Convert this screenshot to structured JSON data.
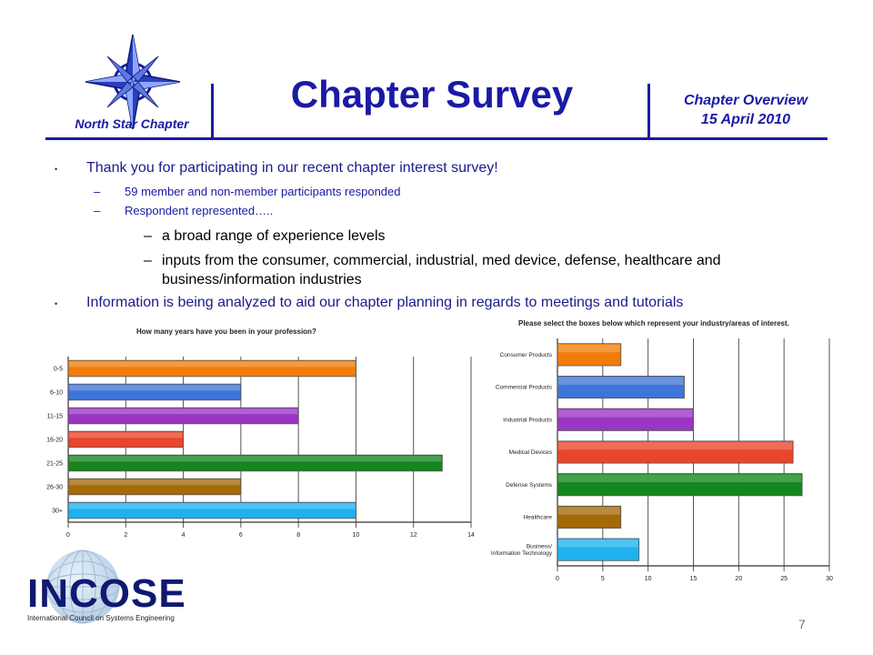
{
  "header": {
    "org": "North Star Chapter",
    "title": "Chapter Survey",
    "overview": "Chapter Overview",
    "date": "15 April 2010"
  },
  "bullets": {
    "b1": "Thank you for participating in our recent chapter interest survey!",
    "b1_sub1": "59 member and non-member participants responded",
    "b1_sub2": "Respondent represented…..",
    "b1_sub2_a": "a broad range of experience levels",
    "b1_sub2_b_line1": "inputs from the consumer, commercial, industrial, med device, defense, healthcare and",
    "b1_sub2_b_line2": "business/information industries",
    "b2": "Information is being analyzed to aid our chapter planning in regards to meetings and tutorials",
    "dash": "–",
    "dot": "•"
  },
  "footer": {
    "logo_text": "INCOSE",
    "logo_sub": "International Council on Systems Engineering",
    "page": "7"
  },
  "colors": [
    "#f07d0a",
    "#3f74d8",
    "#9b35c4",
    "#e8452a",
    "#15861e",
    "#a36a08",
    "#1fb1ef"
  ],
  "chart_data": [
    {
      "type": "bar",
      "orientation": "horizontal",
      "title": "How many years have you been in your profession?",
      "categories": [
        "0-5",
        "6-10",
        "11-15",
        "16-20",
        "21-25",
        "26-30",
        "30+"
      ],
      "values": [
        10,
        6,
        8,
        4,
        13,
        6,
        10
      ],
      "xlim": [
        0,
        14
      ],
      "xticks": [
        0,
        2,
        4,
        6,
        8,
        10,
        12,
        14
      ],
      "grid": true
    },
    {
      "type": "bar",
      "orientation": "horizontal",
      "title": "Please select the boxes below which represent your industry/areas of interest.",
      "categories": [
        "Consumer Products",
        "Commercial Products",
        "Industrial Products",
        "Medical Devices",
        "Defense Systems",
        "Healthcare",
        "Business/Information Technology"
      ],
      "values": [
        7,
        14,
        15,
        26,
        27,
        7,
        9
      ],
      "xlim": [
        0,
        30
      ],
      "xticks": [
        0,
        5,
        10,
        15,
        20,
        25,
        30
      ],
      "grid": true
    }
  ]
}
